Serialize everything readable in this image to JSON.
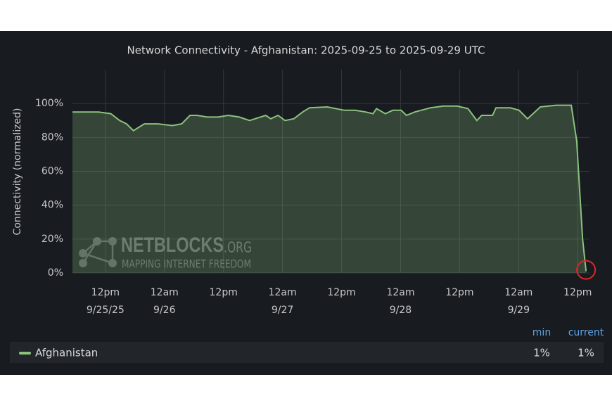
{
  "chart_data": {
    "type": "line",
    "title": "Network Connectivity - Afghanistan: 2025-09-25 to 2025-09-29 UTC",
    "ylabel": "Connectivity (normalized)",
    "watermark": {
      "brand": "NETBLOCKS",
      "suffix": ".ORG",
      "tagline": "MAPPING INTERNET FREEDOM"
    },
    "xlim": [
      5.3,
      110.4
    ],
    "xticks": [
      {
        "value": 12,
        "label": "12pm",
        "date": "9/25/25"
      },
      {
        "value": 24,
        "label": "12am",
        "date": "9/26"
      },
      {
        "value": 36,
        "label": "12pm"
      },
      {
        "value": 48,
        "label": "12am",
        "date": "9/27"
      },
      {
        "value": 60,
        "label": "12pm"
      },
      {
        "value": 72,
        "label": "12am",
        "date": "9/28"
      },
      {
        "value": 84,
        "label": "12pm"
      },
      {
        "value": 96,
        "label": "12am",
        "date": "9/29"
      },
      {
        "value": 108,
        "label": "12pm"
      }
    ],
    "ylim": [
      0,
      120
    ],
    "yticks": [
      {
        "value": 0,
        "label": "0%"
      },
      {
        "value": 20,
        "label": "20%"
      },
      {
        "value": 40,
        "label": "40%"
      },
      {
        "value": 60,
        "label": "60%"
      },
      {
        "value": 80,
        "label": "80%"
      },
      {
        "value": 100,
        "label": "100%"
      }
    ],
    "grid": true,
    "x": [
      5.3,
      10.6,
      13.1,
      14.9,
      16.3,
      17.7,
      19.9,
      22.7,
      25.6,
      27.5,
      29.2,
      30.6,
      32.7,
      34.9,
      37.0,
      39.2,
      41.3,
      43.5,
      44.6,
      45.6,
      47.1,
      48.5,
      50.3,
      52.1,
      53.5,
      57.1,
      60.6,
      62.8,
      64.9,
      66.4,
      67.1,
      68.9,
      70.4,
      72.1,
      73.2,
      74.9,
      78.1,
      80.7,
      83.5,
      85.7,
      87.5,
      88.5,
      90.7,
      91.4,
      94.3,
      96.1,
      97.8,
      100.4,
      103.6,
      106.7,
      107.8,
      109.0,
      109.7
    ],
    "series": [
      {
        "name": "Afghanistan",
        "color": "#8ac27e",
        "values": [
          95,
          95,
          94,
          90,
          88,
          84,
          88,
          88,
          87,
          88,
          93,
          93,
          92,
          92,
          93,
          92,
          90,
          92,
          93,
          91,
          93,
          90,
          91,
          95,
          97.5,
          98,
          96,
          96,
          95,
          94,
          97,
          94,
          96,
          96,
          93,
          95,
          97.5,
          98.5,
          98.5,
          97,
          90,
          93,
          93,
          97.5,
          97.5,
          96,
          91,
          98,
          99,
          99,
          78,
          20,
          1
        ],
        "stats": [
          {
            "name": "min",
            "value": 1,
            "label": "1%"
          },
          {
            "name": "current",
            "value": 1,
            "label": "1%"
          }
        ]
      }
    ]
  }
}
